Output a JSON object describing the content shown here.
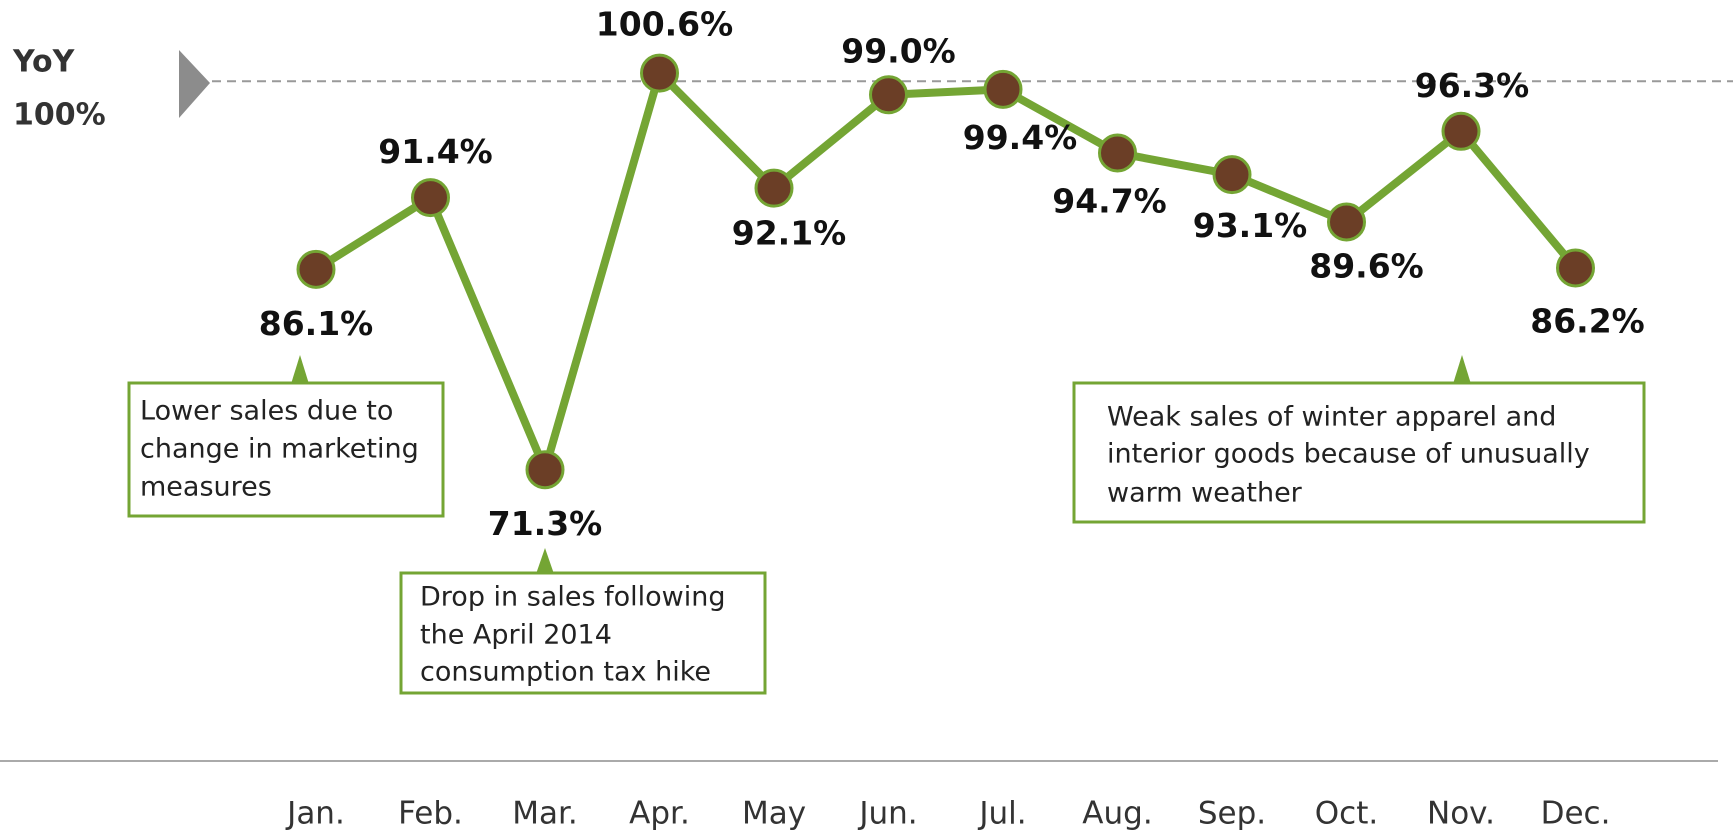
{
  "chart_data": {
    "type": "line",
    "categories": [
      "Jan.",
      "Feb.",
      "Mar.",
      "Apr.",
      "May",
      "Jun.",
      "Jul.",
      "Aug.",
      "Sep.",
      "Oct.",
      "Nov.",
      "Dec."
    ],
    "series": [
      {
        "color": "#74a534",
        "marker_color": "#6b3e26",
        "values": [
          86.1,
          91.4,
          71.3,
          100.6,
          92.1,
          99.0,
          99.4,
          94.7,
          93.1,
          89.6,
          96.3,
          86.2
        ],
        "value_labels": [
          "86.1%",
          "91.4%",
          "71.3%",
          "100.6%",
          "92.1%",
          "99.0%",
          "99.4%",
          "94.7%",
          "93.1%",
          "89.6%",
          "96.3%",
          "86.2%"
        ]
      }
    ],
    "ylim": [
      50,
      106
    ],
    "reference_line": {
      "value": 100,
      "label_lines": [
        "YoY",
        "100%"
      ]
    },
    "annotations": [
      {
        "lines": [
          "Lower sales due to",
          "change in marketing",
          "measures"
        ]
      },
      {
        "lines": [
          "Drop in sales following",
          "the April 2014",
          "consumption tax hike"
        ]
      },
      {
        "lines": [
          "Weak sales of winter apparel and",
          "interior goods because of unusually",
          "warm weather"
        ]
      }
    ]
  }
}
